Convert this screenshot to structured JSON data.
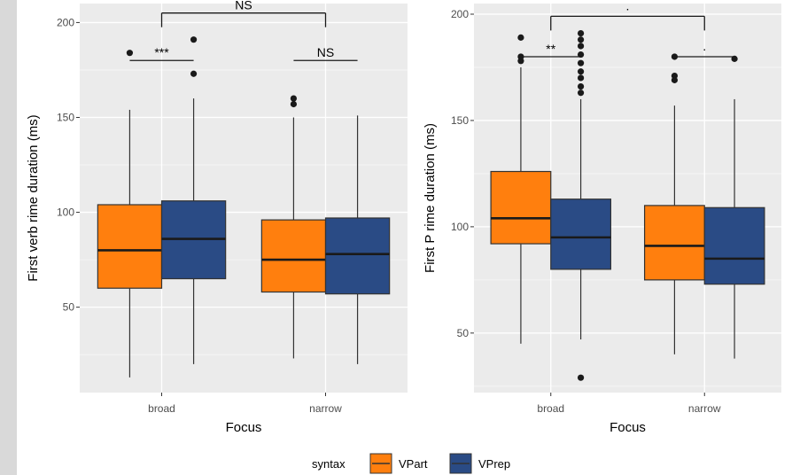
{
  "chart_data": [
    {
      "type": "boxplot",
      "xlabel": "Focus",
      "ylabel": "First verb rime duration (ms)",
      "categories": [
        "broad",
        "narrow"
      ],
      "ylim": [
        5,
        210
      ],
      "yticks": [
        "50",
        "100",
        "150",
        "200"
      ],
      "grid": true,
      "series": [
        {
          "name": "VPart",
          "boxes": [
            {
              "min": 13,
              "q1": 60,
              "median": 80,
              "q3": 104,
              "max": 154,
              "outliers": [
                184
              ]
            },
            {
              "min": 23,
              "q1": 58,
              "median": 75,
              "q3": 96,
              "max": 150,
              "outliers": [
                157,
                160
              ]
            }
          ]
        },
        {
          "name": "VPrep",
          "boxes": [
            {
              "min": 20,
              "q1": 65,
              "median": 86,
              "q3": 106,
              "max": 160,
              "outliers": [
                173,
                191
              ]
            },
            {
              "min": 20,
              "q1": 57,
              "median": 78,
              "q3": 97,
              "max": 151,
              "outliers": []
            }
          ]
        }
      ],
      "annotations": [
        {
          "label": "NS",
          "level": 205,
          "from": "broad",
          "to": "narrow",
          "drops": true
        },
        {
          "label": "***",
          "level": 180,
          "from": "broad-VPart",
          "to": "broad-VPrep",
          "drops": false
        },
        {
          "label": "NS",
          "level": 180,
          "from": "narrow-VPart",
          "to": "narrow-VPrep",
          "drops": false
        }
      ]
    },
    {
      "type": "boxplot",
      "xlabel": "Focus",
      "ylabel": "First P rime duration (ms)",
      "categories": [
        "broad",
        "narrow"
      ],
      "ylim": [
        22,
        205
      ],
      "yticks": [
        "50",
        "100",
        "150",
        "200"
      ],
      "grid": true,
      "series": [
        {
          "name": "VPart",
          "boxes": [
            {
              "min": 45,
              "q1": 92,
              "median": 104,
              "q3": 126,
              "max": 175,
              "outliers": [
                178,
                180,
                189
              ]
            },
            {
              "min": 40,
              "q1": 75,
              "median": 91,
              "q3": 110,
              "max": 157,
              "outliers": [
                169,
                171,
                180
              ]
            }
          ]
        },
        {
          "name": "VPrep",
          "boxes": [
            {
              "min": 47,
              "q1": 80,
              "median": 95,
              "q3": 113,
              "max": 160,
              "outliers": [
                29,
                163,
                166,
                170,
                173,
                177,
                181,
                185,
                188,
                191
              ]
            },
            {
              "min": 38,
              "q1": 73,
              "median": 85,
              "q3": 109,
              "max": 160,
              "outliers": [
                179
              ]
            }
          ]
        }
      ],
      "annotations": [
        {
          "label": "·",
          "level": 199,
          "from": "broad",
          "to": "narrow",
          "drops": true
        },
        {
          "label": "**",
          "level": 180,
          "from": "broad-VPart",
          "to": "broad-VPrep",
          "drops": false
        },
        {
          "label": "·",
          "level": 180,
          "from": "narrow-VPart",
          "to": "narrow-VPrep",
          "drops": false
        }
      ]
    }
  ],
  "legend": {
    "title": "syntax",
    "position": "bottom",
    "items": [
      {
        "name": "VPart",
        "color": "#ff7f0e"
      },
      {
        "name": "VPrep",
        "color": "#2a4b85"
      }
    ]
  },
  "colors": {
    "VPart": "#ff7f0e",
    "VPrep": "#2a4b85",
    "panel": "#ebebeb",
    "grid": "#ffffff"
  }
}
